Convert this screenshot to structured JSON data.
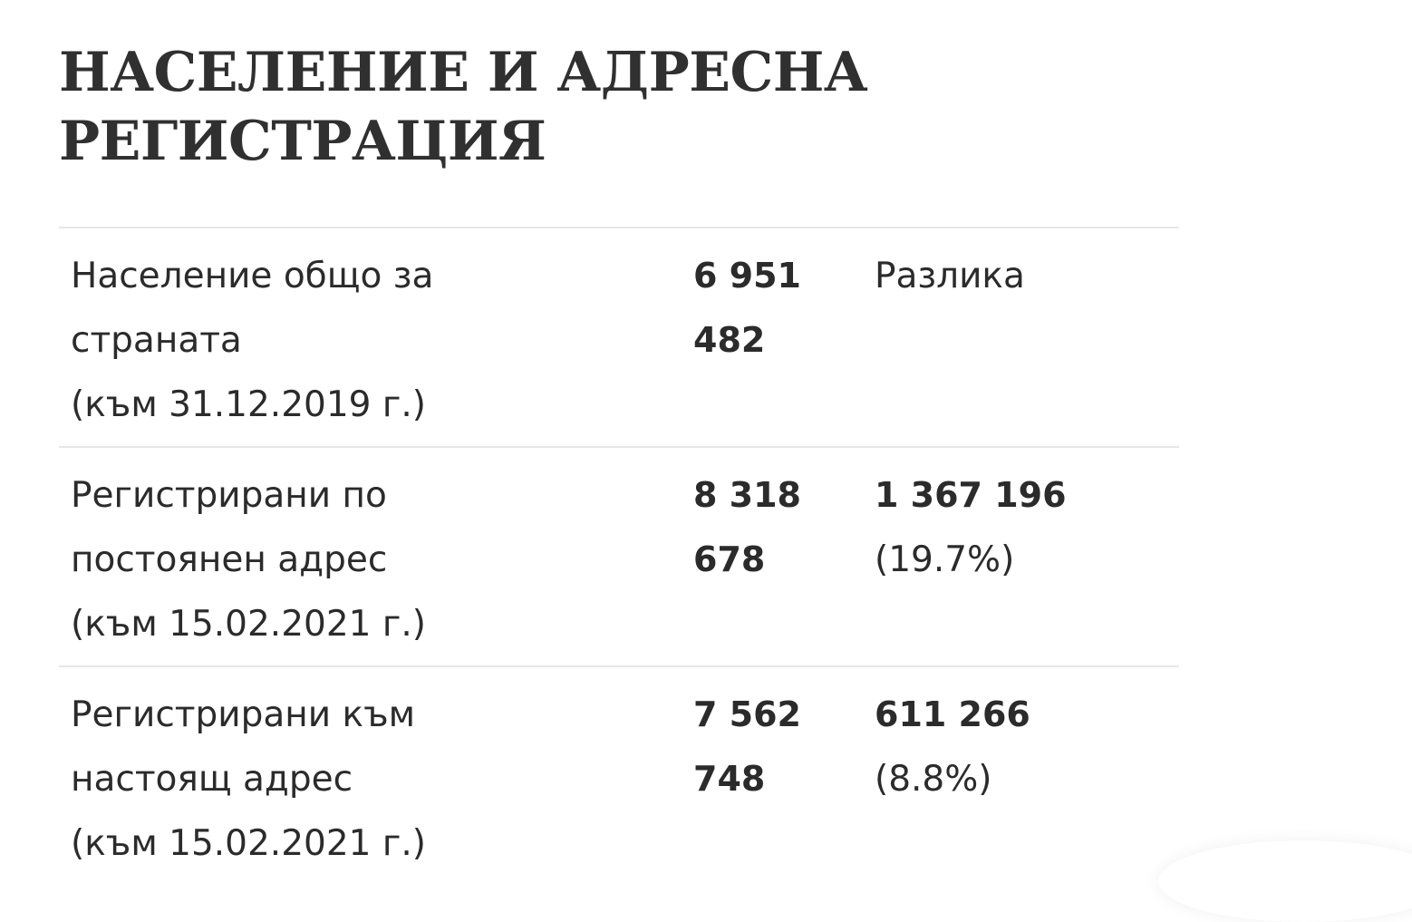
{
  "title": {
    "line1": "НАСЕЛЕНИЕ И АДРЕСНА",
    "line2": "РЕГИСТРАЦИЯ"
  },
  "rows": [
    {
      "label": [
        "Население общо за",
        "страната",
        "(към 31.12.2019 г.)"
      ],
      "value": [
        "6 951",
        "482"
      ],
      "diff": [
        "Разлика"
      ]
    },
    {
      "label": [
        "Регистрирани по",
        "постоянен адрес",
        "(към 15.02.2021 г.)"
      ],
      "value": [
        "8 318",
        "678"
      ],
      "diff": [
        "1 367 196",
        "(19.7%)"
      ]
    },
    {
      "label": [
        "Регистрирани към",
        "настоящ адрес",
        "(към 15.02.2021 г.)"
      ],
      "value": [
        "7 562",
        "748"
      ],
      "diff": [
        "611 266",
        "(8.8%)"
      ]
    }
  ]
}
